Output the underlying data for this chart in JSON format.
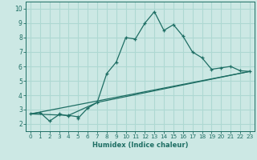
{
  "xlabel": "Humidex (Indice chaleur)",
  "bg_color": "#cce8e4",
  "grid_color": "#aed8d2",
  "line_color": "#1e6e64",
  "xlim": [
    -0.5,
    23.5
  ],
  "ylim": [
    1.5,
    10.5
  ],
  "xticks": [
    0,
    1,
    2,
    3,
    4,
    5,
    6,
    7,
    8,
    9,
    10,
    11,
    12,
    13,
    14,
    15,
    16,
    17,
    18,
    19,
    20,
    21,
    22,
    23
  ],
  "yticks": [
    2,
    3,
    4,
    5,
    6,
    7,
    8,
    9,
    10
  ],
  "series1_x": [
    0,
    1,
    2,
    3,
    3,
    4,
    4,
    5,
    5,
    6,
    7,
    8,
    9,
    10,
    11,
    12,
    13,
    14,
    15,
    16,
    17,
    18,
    19,
    20,
    21,
    22,
    23
  ],
  "series1_y": [
    2.7,
    2.8,
    2.2,
    2.65,
    2.7,
    2.55,
    2.6,
    2.5,
    2.4,
    3.1,
    3.5,
    5.5,
    6.3,
    8.0,
    7.9,
    9.0,
    9.8,
    8.5,
    8.9,
    8.1,
    7.0,
    6.6,
    5.8,
    5.9,
    6.0,
    5.7,
    5.65
  ],
  "series2_x": [
    0,
    23
  ],
  "series2_y": [
    2.7,
    5.65
  ],
  "series3_x": [
    0,
    4,
    7,
    23
  ],
  "series3_y": [
    2.7,
    2.6,
    3.5,
    5.65
  ]
}
